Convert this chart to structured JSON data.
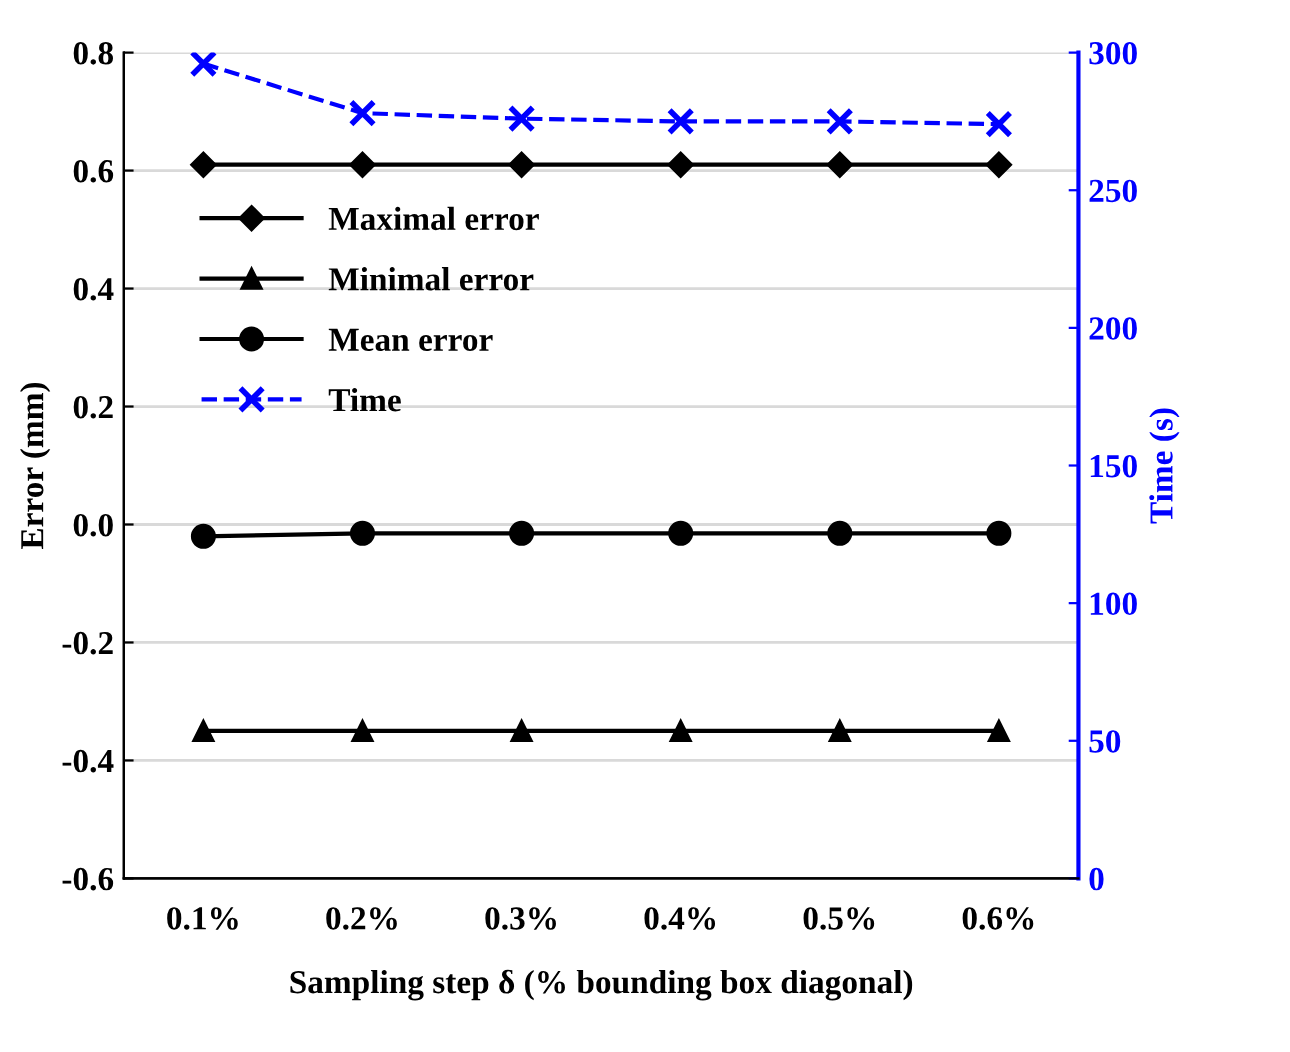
{
  "chart_data": {
    "type": "line",
    "xlabel": "Sampling step δ (% bounding box diagonal)",
    "ylabel": "Error (mm)",
    "y2label": "Time (s)",
    "categories": [
      "0.1%",
      "0.2%",
      "0.3%",
      "0.4%",
      "0.5%",
      "0.6%"
    ],
    "series": [
      {
        "name": "Maximal error",
        "color": "#000000",
        "marker": "diamond",
        "line_style": "solid",
        "values": [
          0.61,
          0.61,
          0.61,
          0.61,
          0.61,
          0.61
        ]
      },
      {
        "name": "Minimal error",
        "color": "#000000",
        "marker": "triangle",
        "line_style": "solid",
        "values": [
          -0.35,
          -0.35,
          -0.35,
          -0.35,
          -0.35,
          -0.35
        ]
      },
      {
        "name": "Mean error",
        "color": "#000000",
        "marker": "circle",
        "line_style": "solid",
        "values": [
          -0.02,
          -0.015,
          -0.015,
          -0.015,
          -0.015,
          -0.015
        ]
      },
      {
        "name": "Time",
        "color": "#0000ff",
        "marker": "cross",
        "line_style": "dashed",
        "axis": "y2",
        "values": [
          296,
          278,
          276,
          275,
          275,
          274
        ]
      }
    ],
    "ylim": [
      -0.6,
      0.8
    ],
    "yticks": [
      {
        "value": -0.6,
        "label": "-0.6"
      },
      {
        "value": -0.4,
        "label": "-0.4"
      },
      {
        "value": -0.2,
        "label": "-0.2"
      },
      {
        "value": 0.0,
        "label": "0.0"
      },
      {
        "value": 0.2,
        "label": "0.2"
      },
      {
        "value": 0.4,
        "label": "0.4"
      },
      {
        "value": 0.6,
        "label": "0.6"
      },
      {
        "value": 0.8,
        "label": "0.8"
      }
    ],
    "y2lim": [
      0,
      300
    ],
    "y2ticks": [
      0,
      50,
      100,
      150,
      200,
      250,
      300
    ],
    "grid": "y",
    "legend": "top left"
  }
}
